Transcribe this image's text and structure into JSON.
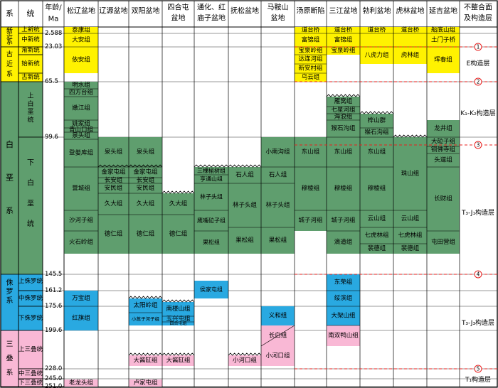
{
  "chart_data": {
    "type": "table",
    "headers": {
      "system": "系",
      "series": "统",
      "age": "年龄/Ma",
      "basins": [
        "松辽盆地",
        "辽源盆地",
        "双阳盆地",
        "四合屯盆地",
        "通化、红庙子盆地",
        "抚松盆地",
        "马鞍山盆地",
        "汤原断陷",
        "三江盆地",
        "勃利盆地",
        "虎林盆地",
        "延吉盆地"
      ],
      "unconformity": "不整合面及构造层"
    },
    "systems": [
      {
        "id": "neogene",
        "label": "新近系"
      },
      {
        "id": "paleogene",
        "label": "古近系"
      },
      {
        "id": "cretaceous",
        "label": "白垩系"
      },
      {
        "id": "jurassic",
        "label": "侏罗系"
      },
      {
        "id": "triassic",
        "label": "三叠系"
      }
    ],
    "series_list": [
      {
        "id": "pliocene",
        "label": "上新统"
      },
      {
        "id": "miocene",
        "label": "中新统"
      },
      {
        "id": "oligocene",
        "label": "渐新统"
      },
      {
        "id": "eocene",
        "label": "始新统"
      },
      {
        "id": "paleocene",
        "label": "古新统"
      },
      {
        "id": "upper-cretaceous",
        "label": "上白垩统"
      },
      {
        "id": "lower-cretaceous",
        "label": "下白垩统"
      },
      {
        "id": "upper-jurassic",
        "label": "上侏罗统"
      },
      {
        "id": "middle-jurassic",
        "label": "中侏罗统"
      },
      {
        "id": "lower-jurassic",
        "label": "下侏罗统"
      },
      {
        "id": "upper-triassic",
        "label": "上三叠统"
      },
      {
        "id": "middle-triassic",
        "label": "中三叠统"
      },
      {
        "id": "lower-triassic",
        "label": "下三叠统"
      }
    ],
    "ages_ma": [
      "2.588",
      "23.03",
      "65.5",
      "99.6",
      "145.5",
      "161.2",
      "175.6",
      "199.6",
      "228.0",
      "245.0",
      "251.0"
    ],
    "formations": [
      {
        "basin": 0,
        "labels": [
          "泰康组",
          "大安组",
          "依安组"
        ],
        "color": "yellow"
      },
      {
        "basin": 0,
        "labels": [
          "明水组",
          "四方台组",
          "嫩江组",
          "姚家组",
          "青山口组",
          "泉头组",
          "登娄库组",
          "营城组",
          "沙河子组",
          "火石岭组"
        ],
        "color": "green"
      },
      {
        "basin": 0,
        "labels": [
          "万宝组",
          "红旗组"
        ],
        "color": "blue"
      },
      {
        "basin": 0,
        "labels": [
          "老龙头组"
        ],
        "color": "pink"
      },
      {
        "basin": 1,
        "labels": [
          "泉头组",
          "金家屯组",
          "长安组",
          "安民组",
          "久大组",
          "德仁组"
        ],
        "color": "green"
      },
      {
        "basin": 2,
        "labels": [
          "泉头组",
          "金家屯组",
          "长安组",
          "安民组",
          "久大组",
          "德仁组"
        ],
        "color": "green"
      },
      {
        "basin": 2,
        "labels": [
          "太阳岭组",
          "小蒿子河子组"
        ],
        "color": "blue"
      },
      {
        "basin": 2,
        "labels": [
          "大酱缸组",
          "卢家屯组"
        ],
        "color": "pink"
      },
      {
        "basin": 3,
        "labels": [
          "久大组",
          "德仁组"
        ],
        "color": "green"
      },
      {
        "basin": 3,
        "labels": [
          "南楼山组",
          "玉兴屯组",
          "四合屯组"
        ],
        "color": "blue"
      },
      {
        "basin": 3,
        "labels": [
          "大酱缸组"
        ],
        "color": "pink"
      },
      {
        "basin": 4,
        "labels": [
          "三棵榆树组",
          "亨通山组",
          "林子头组",
          "鹰嘴砬子组",
          "果松组"
        ],
        "color": "green"
      },
      {
        "basin": 4,
        "labels": [
          "侯家屯组"
        ],
        "color": "blue"
      },
      {
        "basin": 5,
        "labels": [
          "石人组",
          "林子头组",
          "果松组"
        ],
        "color": "green"
      },
      {
        "basin": 5,
        "labels": [
          "小河口组"
        ],
        "color": "pink"
      },
      {
        "basin": 6,
        "labels": [
          "小南沟组",
          "石人组",
          "林子头组",
          "果松组"
        ],
        "color": "green"
      },
      {
        "basin": 6,
        "labels": [
          "义和组"
        ],
        "color": "blue"
      },
      {
        "basin": 6,
        "labels": [
          "长白组",
          "小河口组"
        ],
        "color": "pink"
      },
      {
        "basin": 7,
        "labels": [
          "道台桥",
          "富锦组",
          "宝泉岭组",
          "达连河组",
          "新安村组",
          "乌云组"
        ],
        "color": "yellow"
      },
      {
        "basin": 7,
        "labels": [
          "东山组",
          "穆棱组",
          "城子河组"
        ],
        "color": "green"
      },
      {
        "basin": 8,
        "labels": [
          "道台桥",
          "富锦组",
          "宝泉岭组"
        ],
        "color": "yellow"
      },
      {
        "basin": 8,
        "labels": [
          "雁窝组",
          "七星河组",
          "海浪组",
          "猴石沟组",
          "东山组",
          "穆棱组",
          "城子河组",
          "滴道组"
        ],
        "color": "green"
      },
      {
        "basin": 8,
        "labels": [
          "东荣组",
          "绥滨组",
          "大架山组"
        ],
        "color": "blue"
      },
      {
        "basin": 8,
        "labels": [
          "南双鸭山组"
        ],
        "color": "pink"
      },
      {
        "basin": 9,
        "labels": [
          "道台桥",
          "八虎力组"
        ],
        "color": "yellow"
      },
      {
        "basin": 9,
        "labels": [
          "桦山群",
          "猴石沟组",
          "东山组",
          "穆棱组",
          "云山组",
          "七虎林组",
          "裴德组"
        ],
        "color": "green"
      },
      {
        "basin": 10,
        "labels": [
          "道台桥",
          "虎林组"
        ],
        "color": "yellow"
      },
      {
        "basin": 10,
        "labels": [
          "东山组",
          "珠山组",
          "云山组",
          "七虎林组",
          "裴德组"
        ],
        "color": "green"
      },
      {
        "basin": 11,
        "labels": [
          "船底山组",
          "土门子桥",
          "珲春组"
        ],
        "color": "yellow"
      },
      {
        "basin": 11,
        "labels": [
          "龙井组",
          "大砬子组",
          "铜佛寺组",
          "头道组",
          "长财组",
          "屯田营组"
        ],
        "color": "green"
      }
    ],
    "unconformities": [
      "5",
      "4",
      "3",
      "2",
      "1"
    ],
    "tectonic_layers": [
      "E构造层",
      "K₁-K₂构造层",
      "T₃-J₁构造层",
      "T₃-J₃构造层",
      "T₁构造层"
    ],
    "colors": {
      "yellow": "#FFF200",
      "green": "#5F9E6E",
      "blue": "#29A9E1",
      "pink": "#F9B8D5",
      "grid": "#000000",
      "dash": "#E8201F",
      "text": "#000000"
    }
  }
}
